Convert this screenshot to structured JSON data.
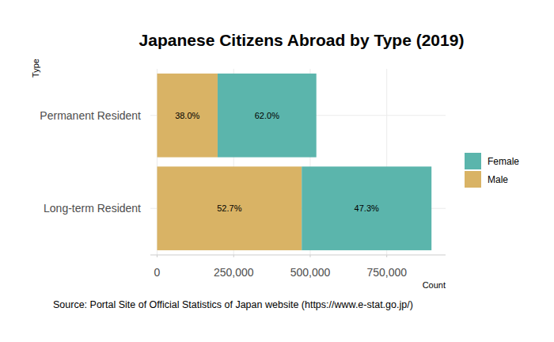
{
  "chart_data": {
    "type": "bar",
    "orientation": "horizontal",
    "stacked": true,
    "title": "Japanese Citizens Abroad by Type (2019)",
    "x_label": "Count",
    "y_label": "Type",
    "source": "Source: Portal Site of Official Statistics of Japan website (https://www.e-stat.go.jp/)",
    "categories": [
      "Permanent Resident",
      "Long-term Resident"
    ],
    "series": [
      {
        "name": "Male",
        "color": "#d9b365",
        "values": [
          197600,
          472200
        ],
        "percent_labels": [
          "38.0%",
          "52.7%"
        ]
      },
      {
        "name": "Female",
        "color": "#5bb5ac",
        "values": [
          322400,
          423800
        ],
        "percent_labels": [
          "62.0%",
          "47.3%"
        ]
      }
    ],
    "xlim": [
      -22000,
      942000
    ],
    "xticks": [
      0,
      {
        "value": 250000,
        "label": "250,000"
      },
      {
        "value": 500000,
        "label": "500,000"
      },
      {
        "value": 750000,
        "label": "750,000"
      }
    ],
    "grid": true,
    "legend": "right"
  }
}
